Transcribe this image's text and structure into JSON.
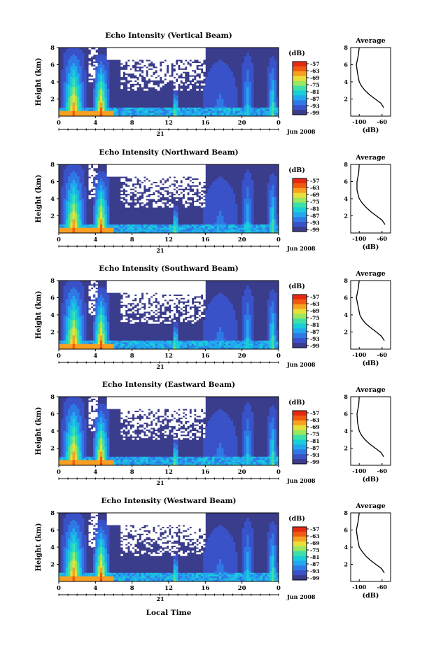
{
  "figure": {
    "xlabel": "Local Time",
    "date_label": "Jun 2008",
    "day_label": "21",
    "avg_title": "Average",
    "avg_xlabel": "(dB)",
    "colorbar_unit": "(dB)",
    "ylabel": "Height (km)"
  },
  "colors": {
    "colormap": [
      "#3a3c8c",
      "#3a52c8",
      "#2f79e6",
      "#22a8ee",
      "#18cfd8",
      "#3ee0a8",
      "#9ae860",
      "#e8e03a",
      "#f8a020",
      "#f05a10",
      "#e62a12"
    ]
  },
  "chart_data": [
    {
      "type": "heatmap",
      "title": "Echo Intensity (Vertical Beam)",
      "x_ticks": [
        "0",
        "4",
        "8",
        "12",
        "16",
        "20",
        "0"
      ],
      "x_range": [
        0,
        24
      ],
      "y_ticks": [
        "2",
        "4",
        "6",
        "8"
      ],
      "y_range": [
        0,
        8
      ],
      "colorbar_ticks": [
        "-57",
        "-63",
        "-69",
        "-75",
        "-81",
        "-87",
        "-93",
        "-99"
      ],
      "avg_x_ticks": [
        "-100",
        "-60"
      ],
      "avg_y_ticks": [
        "2",
        "4",
        "6",
        "8"
      ],
      "average_profile": {
        "x": [
          -100,
          -102,
          -105,
          -103,
          -100,
          -96,
          -90,
          -82,
          -72,
          -62,
          -57
        ],
        "y": [
          8,
          7,
          6,
          5,
          4,
          3.5,
          3,
          2.5,
          2,
          1.5,
          1
        ]
      }
    },
    {
      "type": "heatmap",
      "title": "Echo Intensity (Northward Beam)",
      "x_ticks": [
        "0",
        "4",
        "8",
        "12",
        "16",
        "20",
        "0"
      ],
      "x_range": [
        0,
        24
      ],
      "y_ticks": [
        "2",
        "4",
        "6",
        "8"
      ],
      "y_range": [
        0,
        8
      ],
      "colorbar_ticks": [
        "-57",
        "-63",
        "-69",
        "-75",
        "-81",
        "-87",
        "-93",
        "-99"
      ],
      "avg_x_ticks": [
        "-100",
        "-60"
      ],
      "avg_y_ticks": [
        "2",
        "4",
        "6",
        "8"
      ],
      "average_profile": {
        "x": [
          -100,
          -101,
          -104,
          -104,
          -100,
          -95,
          -88,
          -80,
          -70,
          -60,
          -55
        ],
        "y": [
          8,
          7,
          6,
          5,
          4,
          3.5,
          3,
          2.5,
          2,
          1.5,
          1
        ]
      }
    },
    {
      "type": "heatmap",
      "title": "Echo Intensity (Southward Beam)",
      "x_ticks": [
        "0",
        "4",
        "8",
        "12",
        "16",
        "20",
        "0"
      ],
      "x_range": [
        0,
        24
      ],
      "y_ticks": [
        "2",
        "4",
        "6",
        "8"
      ],
      "y_range": [
        0,
        8
      ],
      "colorbar_ticks": [
        "-57",
        "-63",
        "-69",
        "-75",
        "-81",
        "-87",
        "-93",
        "-99"
      ],
      "avg_x_ticks": [
        "-100",
        "-60"
      ],
      "avg_y_ticks": [
        "2",
        "4",
        "6",
        "8"
      ],
      "average_profile": {
        "x": [
          -100,
          -102,
          -105,
          -102,
          -99,
          -95,
          -89,
          -80,
          -70,
          -61,
          -56
        ],
        "y": [
          8,
          7,
          6,
          5,
          4,
          3.5,
          3,
          2.5,
          2,
          1.5,
          1
        ]
      }
    },
    {
      "type": "heatmap",
      "title": "Echo Intensity (Eastward Beam)",
      "x_ticks": [
        "0",
        "4",
        "8",
        "12",
        "16",
        "20",
        "0"
      ],
      "x_range": [
        0,
        24
      ],
      "y_ticks": [
        "2",
        "4",
        "6",
        "8"
      ],
      "y_range": [
        0,
        8
      ],
      "colorbar_ticks": [
        "-57",
        "-63",
        "-69",
        "-75",
        "-81",
        "-87",
        "-93",
        "-99"
      ],
      "avg_x_ticks": [
        "-100",
        "-60"
      ],
      "avg_y_ticks": [
        "2",
        "4",
        "6",
        "8"
      ],
      "average_profile": {
        "x": [
          -100,
          -101,
          -104,
          -103,
          -100,
          -96,
          -90,
          -82,
          -72,
          -62,
          -57
        ],
        "y": [
          8,
          7,
          6,
          5,
          4,
          3.5,
          3,
          2.5,
          2,
          1.5,
          1
        ]
      }
    },
    {
      "type": "heatmap",
      "title": "Echo Intensity (Westward Beam)",
      "x_ticks": [
        "0",
        "4",
        "8",
        "12",
        "16",
        "20",
        "0"
      ],
      "x_range": [
        0,
        24
      ],
      "y_ticks": [
        "2",
        "4",
        "6",
        "8"
      ],
      "y_range": [
        0,
        8
      ],
      "colorbar_ticks": [
        "-57",
        "-63",
        "-69",
        "-75",
        "-81",
        "-87",
        "-93",
        "-99"
      ],
      "avg_x_ticks": [
        "-100",
        "-60"
      ],
      "avg_y_ticks": [
        "2",
        "4",
        "6",
        "8"
      ],
      "average_profile": {
        "x": [
          -100,
          -102,
          -105,
          -103,
          -100,
          -95,
          -89,
          -81,
          -71,
          -61,
          -56
        ],
        "y": [
          8,
          7,
          6,
          5,
          4,
          3.5,
          3,
          2.5,
          2,
          1.5,
          1
        ]
      }
    }
  ]
}
